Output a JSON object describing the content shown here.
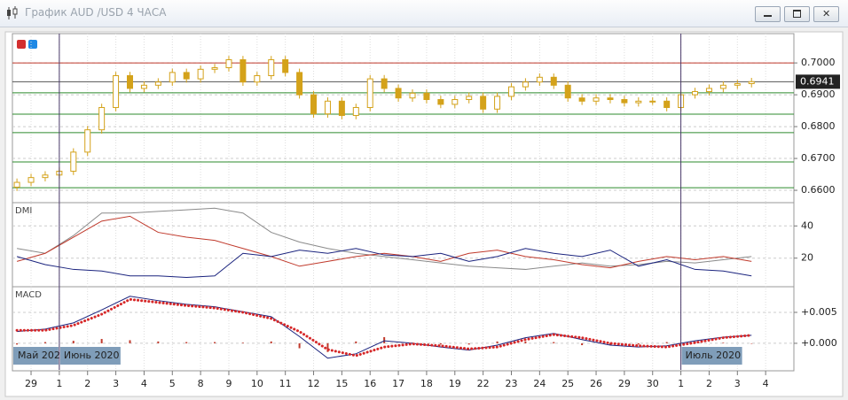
{
  "window": {
    "title": "График AUD /USD  4 ЧАСА"
  },
  "x_axis": {
    "xlim": [
      -0.66,
      27.0
    ],
    "xticks": [
      {
        "value": 0,
        "label": "29"
      },
      {
        "value": 1,
        "label": "1"
      },
      {
        "value": 2,
        "label": "2"
      },
      {
        "value": 3,
        "label": "3"
      },
      {
        "value": 4,
        "label": "4"
      },
      {
        "value": 5,
        "label": "5"
      },
      {
        "value": 6,
        "label": "8"
      },
      {
        "value": 7,
        "label": "9"
      },
      {
        "value": 8,
        "label": "10"
      },
      {
        "value": 9,
        "label": "11"
      },
      {
        "value": 10,
        "label": "12"
      },
      {
        "value": 11,
        "label": "15"
      },
      {
        "value": 12,
        "label": "16"
      },
      {
        "value": 13,
        "label": "17"
      },
      {
        "value": 14,
        "label": "18"
      },
      {
        "value": 15,
        "label": "19"
      },
      {
        "value": 16,
        "label": "22"
      },
      {
        "value": 17,
        "label": "23"
      },
      {
        "value": 18,
        "label": "24"
      },
      {
        "value": 19,
        "label": "25"
      },
      {
        "value": 20,
        "label": "26"
      },
      {
        "value": 21,
        "label": "29"
      },
      {
        "value": 22,
        "label": "30"
      },
      {
        "value": 23,
        "label": "1"
      },
      {
        "value": 24,
        "label": "2"
      },
      {
        "value": 25,
        "label": "3"
      },
      {
        "value": 26,
        "label": "4"
      }
    ],
    "period_start_label": "Май 202",
    "periods": [
      {
        "value": 1,
        "label": "Июнь 2020"
      },
      {
        "value": 23,
        "label": "Июль 2020"
      }
    ]
  },
  "chart_data": [
    {
      "type": "candlestick",
      "color": "#d4a21a",
      "grid": true,
      "ylim": [
        0.6564,
        0.7092
      ],
      "yticks": [
        {
          "value": 0.66,
          "label": "0.6600"
        },
        {
          "value": 0.67,
          "label": "0.6700"
        },
        {
          "value": 0.68,
          "label": "0.6800"
        },
        {
          "value": 0.69,
          "label": "0.6900"
        },
        {
          "value": 0.7,
          "label": "0.7000"
        }
      ],
      "current_price": 0.6941,
      "levels": [
        {
          "value": 0.7,
          "color": "#c0392b"
        },
        {
          "value": 0.6906,
          "color": "#2e8b2e"
        },
        {
          "value": 0.6839,
          "color": "#2e8b2e"
        },
        {
          "value": 0.6781,
          "color": "#2e8b2e"
        },
        {
          "value": 0.6689,
          "color": "#2e8b2e"
        },
        {
          "value": 0.6608,
          "color": "#2e8b2e"
        }
      ],
      "x": [
        -0.5,
        0,
        0.5,
        1,
        1.5,
        2,
        2.5,
        3,
        3.5,
        4,
        4.5,
        5,
        5.5,
        6,
        6.5,
        7,
        7.5,
        8,
        8.5,
        9,
        9.5,
        10,
        10.5,
        11,
        11.5,
        12,
        12.5,
        13,
        13.5,
        14,
        14.5,
        15,
        15.5,
        16,
        16.5,
        17,
        17.5,
        18,
        18.5,
        19,
        19.5,
        20,
        20.5,
        21,
        21.5,
        22,
        22.5,
        23,
        23.5,
        24,
        24.5,
        25,
        25.5
      ],
      "open": [
        0.661,
        0.6625,
        0.664,
        0.6648,
        0.666,
        0.672,
        0.679,
        0.686,
        0.696,
        0.692,
        0.693,
        0.694,
        0.697,
        0.695,
        0.698,
        0.6985,
        0.701,
        0.694,
        0.696,
        0.701,
        0.697,
        0.69,
        0.684,
        0.688,
        0.6835,
        0.686,
        0.695,
        0.692,
        0.689,
        0.6905,
        0.6885,
        0.687,
        0.6885,
        0.6895,
        0.6855,
        0.6895,
        0.6925,
        0.694,
        0.6955,
        0.693,
        0.689,
        0.688,
        0.689,
        0.6885,
        0.6875,
        0.688,
        0.688,
        0.686,
        0.69,
        0.691,
        0.692,
        0.693,
        0.6935
      ],
      "high": [
        0.6637,
        0.6652,
        0.666,
        0.6672,
        0.6732,
        0.6802,
        0.6872,
        0.6972,
        0.6972,
        0.6942,
        0.6952,
        0.6982,
        0.6982,
        0.6992,
        0.6997,
        0.7022,
        0.7022,
        0.6972,
        0.7022,
        0.7022,
        0.6982,
        0.6912,
        0.6892,
        0.6892,
        0.6872,
        0.6962,
        0.6962,
        0.6932,
        0.6917,
        0.6917,
        0.6897,
        0.6897,
        0.6907,
        0.6907,
        0.6907,
        0.6937,
        0.6952,
        0.6967,
        0.6967,
        0.6942,
        0.6902,
        0.6902,
        0.6902,
        0.6897,
        0.6892,
        0.6892,
        0.6892,
        0.6912,
        0.6922,
        0.6932,
        0.6942,
        0.6947,
        0.6953
      ],
      "low": [
        0.6598,
        0.6613,
        0.6628,
        0.6636,
        0.6648,
        0.6708,
        0.6778,
        0.6848,
        0.6908,
        0.6908,
        0.6918,
        0.6928,
        0.6938,
        0.6938,
        0.6968,
        0.6973,
        0.6928,
        0.6928,
        0.6948,
        0.6958,
        0.6888,
        0.6828,
        0.6828,
        0.6823,
        0.6823,
        0.6848,
        0.6908,
        0.6878,
        0.6878,
        0.6873,
        0.6858,
        0.6858,
        0.6873,
        0.6843,
        0.6843,
        0.6883,
        0.6913,
        0.6928,
        0.6918,
        0.6878,
        0.6868,
        0.6868,
        0.6873,
        0.6863,
        0.6863,
        0.6868,
        0.6848,
        0.6848,
        0.6888,
        0.6898,
        0.6908,
        0.6918,
        0.6923
      ],
      "close": [
        0.6625,
        0.664,
        0.6648,
        0.666,
        0.672,
        0.679,
        0.686,
        0.696,
        0.692,
        0.693,
        0.694,
        0.697,
        0.695,
        0.698,
        0.6985,
        0.701,
        0.694,
        0.696,
        0.701,
        0.697,
        0.69,
        0.684,
        0.688,
        0.6835,
        0.686,
        0.695,
        0.692,
        0.689,
        0.6905,
        0.6885,
        0.687,
        0.6885,
        0.6895,
        0.6855,
        0.6895,
        0.6925,
        0.694,
        0.6955,
        0.693,
        0.689,
        0.688,
        0.689,
        0.6885,
        0.6875,
        0.688,
        0.688,
        0.686,
        0.69,
        0.691,
        0.692,
        0.693,
        0.6935,
        0.6941
      ]
    },
    {
      "type": "line",
      "title": "DMI",
      "grid": true,
      "ylim": [
        2.8,
        53.9
      ],
      "yticks": [
        20,
        40
      ],
      "x": [
        -0.5,
        0.5,
        1.5,
        2.5,
        3.5,
        4.5,
        5.5,
        6.5,
        7.5,
        8.5,
        9.5,
        10.5,
        11.5,
        12.5,
        13.5,
        14.5,
        15.5,
        16.5,
        17.5,
        18.5,
        19.5,
        20.5,
        21.5,
        22.5,
        23.5,
        24.5,
        25.5
      ],
      "series": [
        {
          "color": "#8a8a8a",
          "values": [
            26,
            23,
            34,
            48,
            48,
            49,
            50,
            51,
            48,
            36,
            30,
            26,
            23,
            21,
            19,
            17,
            15,
            14,
            13,
            15,
            17,
            15,
            16,
            18,
            17,
            19,
            21
          ]
        },
        {
          "color": "#c0392b",
          "values": [
            18,
            23,
            33,
            43,
            46,
            36,
            33,
            31,
            26,
            21,
            15,
            18,
            21,
            23,
            21,
            18,
            23,
            25,
            21,
            19,
            16,
            14,
            18,
            21,
            19,
            21,
            18
          ]
        },
        {
          "color": "#1a237e",
          "values": [
            21,
            16,
            13,
            12,
            9,
            9,
            8,
            9,
            23,
            21,
            25,
            23,
            26,
            22,
            21,
            23,
            18,
            21,
            26,
            23,
            21,
            25,
            15,
            19,
            13,
            12,
            9
          ]
        }
      ]
    },
    {
      "type": "line",
      "title": "MACD",
      "grid": true,
      "ylim": [
        -0.0043,
        0.009
      ],
      "yticks": [
        {
          "value": 0,
          "label": "+0.000"
        },
        {
          "value": 0.005,
          "label": "+0.005"
        }
      ],
      "x": [
        -0.5,
        0.5,
        1.5,
        2.5,
        3.5,
        4.5,
        5.5,
        6.5,
        7.5,
        8.5,
        9.5,
        10.5,
        11.5,
        12.5,
        13.5,
        14.5,
        15.5,
        16.5,
        17.5,
        18.5,
        19.5,
        20.5,
        21.5,
        22.5,
        23.5,
        24.5,
        25.5
      ],
      "series": [
        {
          "color": "#c0392b",
          "style": "bar",
          "values": [
            -0.0002,
            0.0002,
            0.0004,
            0.0007,
            0.0005,
            0.0003,
            0.0002,
            0.0002,
            0.0001,
            0.0003,
            -0.0008,
            -0.0014,
            0.0003,
            0.001,
            0.0001,
            -0.0002,
            -0.0002,
            0.0003,
            0.0003,
            0.0002,
            -0.0003,
            -0.0003,
            -0.0002,
            0.0002,
            0.0003,
            0.0001,
            0
          ]
        },
        {
          "color": "#1a237e",
          "style": "line",
          "values": [
            0.0019,
            0.0023,
            0.0033,
            0.0054,
            0.0076,
            0.0069,
            0.0063,
            0.0059,
            0.0051,
            0.0043,
            0.0011,
            -0.0024,
            -0.0017,
            0.0004,
            0,
            -0.0006,
            -0.0011,
            -0.0003,
            0.0009,
            0.0016,
            0.0006,
            -0.0003,
            -0.0006,
            -0.0004,
            0.0004,
            0.001,
            0.0013
          ]
        },
        {
          "color": "#d62728",
          "style": "dotted",
          "values": [
            0.0021,
            0.0021,
            0.0029,
            0.0047,
            0.0071,
            0.0066,
            0.0061,
            0.0057,
            0.005,
            0.004,
            0.0019,
            -0.001,
            -0.002,
            -0.0006,
            -0.0001,
            -0.0004,
            -0.0009,
            -0.0006,
            0.0006,
            0.0014,
            0.0009,
            0,
            -0.0004,
            -0.0006,
            0.0001,
            0.0009,
            0.0013
          ]
        }
      ]
    }
  ]
}
